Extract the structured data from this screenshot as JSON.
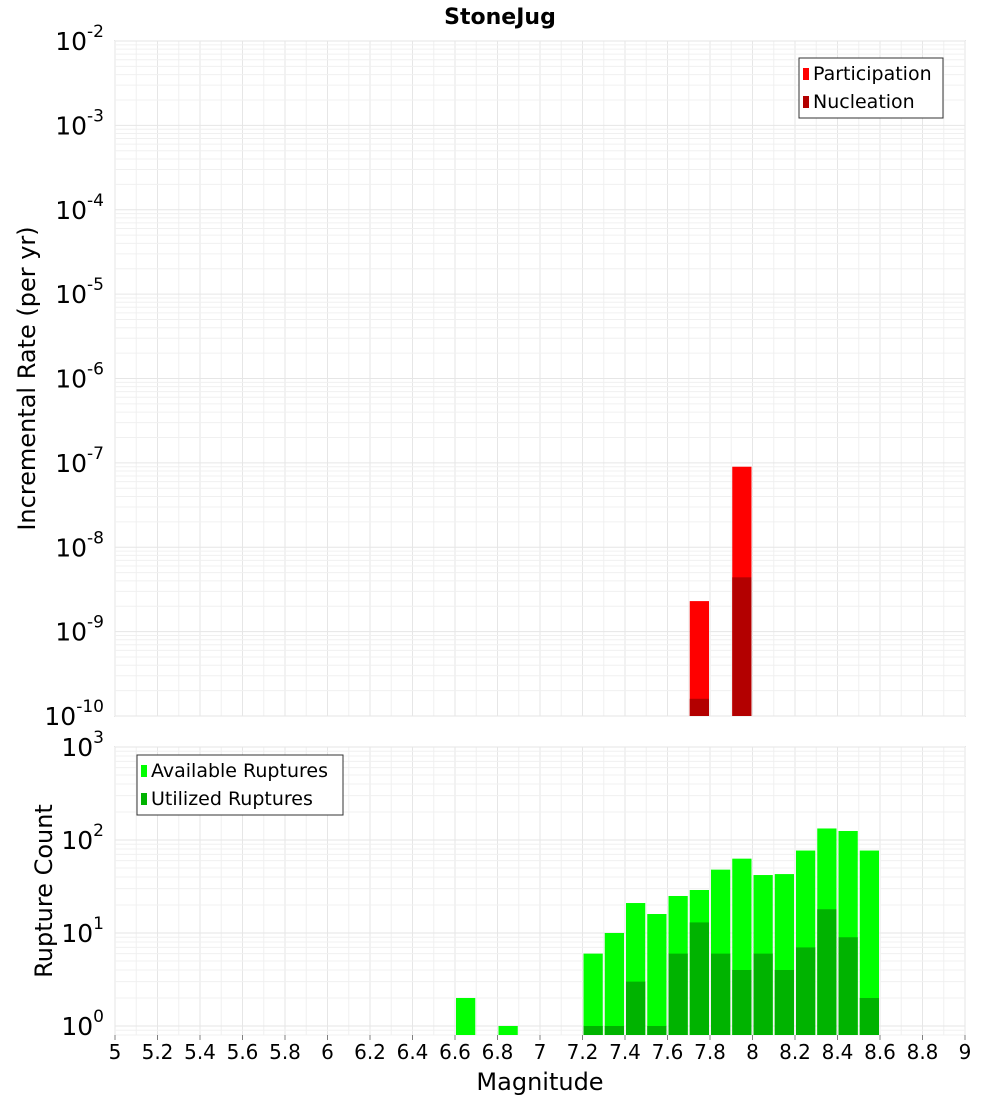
{
  "chart_data": {
    "title": "StoneJug",
    "xlabel": "Magnitude",
    "x_ticks": [
      "5",
      "5.2",
      "5.4",
      "5.6",
      "5.8",
      "6",
      "6.2",
      "6.4",
      "6.6",
      "6.8",
      "7",
      "7.2",
      "7.4",
      "7.6",
      "7.8",
      "8",
      "8.2",
      "8.4",
      "8.6",
      "8.8",
      "9"
    ],
    "xlim": [
      5,
      9
    ],
    "bar_width": 0.1,
    "panels": [
      {
        "id": "rate",
        "type": "bar",
        "ylabel": "Incremental Rate (per yr)",
        "y_scale": "log",
        "ylim": [
          1e-10,
          0.01
        ],
        "y_ticks": [
          {
            "base": "10",
            "exp": "-10",
            "value": 1e-10
          },
          {
            "base": "10",
            "exp": "-9",
            "value": 1e-09
          },
          {
            "base": "10",
            "exp": "-8",
            "value": 1e-08
          },
          {
            "base": "10",
            "exp": "-7",
            "value": 1e-07
          },
          {
            "base": "10",
            "exp": "-6",
            "value": 1e-06
          },
          {
            "base": "10",
            "exp": "-5",
            "value": 1e-05
          },
          {
            "base": "10",
            "exp": "-4",
            "value": 0.0001
          },
          {
            "base": "10",
            "exp": "-3",
            "value": 0.001
          },
          {
            "base": "10",
            "exp": "-2",
            "value": 0.01
          }
        ],
        "legend": {
          "position": "top-right"
        },
        "series": [
          {
            "name": "Participation",
            "color": "#ff0000",
            "x": [
              7.75,
              7.95
            ],
            "values": [
              2.3e-09,
              9e-08
            ]
          },
          {
            "name": "Nucleation",
            "color": "#b30000",
            "x": [
              7.75,
              7.95
            ],
            "values": [
              1.6e-10,
              4.4e-09
            ]
          }
        ]
      },
      {
        "id": "count",
        "type": "bar",
        "ylabel": "Rupture Count",
        "y_scale": "log",
        "ylim": [
          0.8,
          1000
        ],
        "y_ticks": [
          {
            "base": "10",
            "exp": "0",
            "value": 1
          },
          {
            "base": "10",
            "exp": "1",
            "value": 10
          },
          {
            "base": "10",
            "exp": "2",
            "value": 100
          },
          {
            "base": "10",
            "exp": "3",
            "value": 1000
          }
        ],
        "legend": {
          "position": "top-left"
        },
        "series": [
          {
            "name": "Available Ruptures",
            "color": "#00ff00",
            "x": [
              6.65,
              6.85,
              7.25,
              7.35,
              7.45,
              7.55,
              7.65,
              7.75,
              7.85,
              7.95,
              8.05,
              8.15,
              8.25,
              8.35,
              8.45,
              8.55
            ],
            "values": [
              2,
              1,
              6,
              10,
              21,
              16,
              25,
              29,
              48,
              63,
              42,
              43,
              77,
              133,
              125,
              77
            ]
          },
          {
            "name": "Utilized Ruptures",
            "color": "#00b300",
            "x": [
              7.25,
              7.35,
              7.45,
              7.55,
              7.65,
              7.75,
              7.85,
              7.95,
              8.05,
              8.15,
              8.25,
              8.35,
              8.45,
              8.55
            ],
            "values": [
              1,
              1,
              3,
              1,
              6,
              13,
              6,
              4,
              6,
              4,
              7,
              18,
              9,
              2
            ]
          }
        ]
      }
    ]
  }
}
